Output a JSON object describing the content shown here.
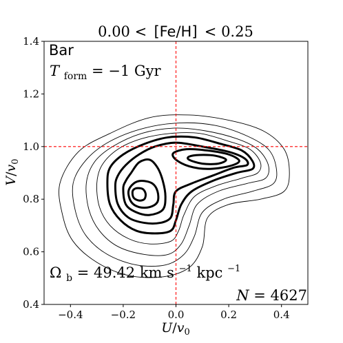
{
  "chart_data": {
    "type": "contour",
    "title": {
      "left": "0.00 <",
      "middle": "[Fe/H]",
      "right": "< 0.25"
    },
    "xlabel": {
      "main": "U",
      "sep": "/",
      "sym": "v",
      "sub": "0"
    },
    "ylabel": {
      "main": "V",
      "sep": "/",
      "sym": "v",
      "sub": "0"
    },
    "xlim": [
      -0.5,
      0.5
    ],
    "ylim": [
      0.4,
      1.4
    ],
    "xticks": [
      -0.4,
      -0.2,
      0.0,
      0.2,
      0.4
    ],
    "xtick_labels": [
      "−0.4",
      "−0.2",
      "0.0",
      "0.2",
      "0.4"
    ],
    "yticks": [
      0.4,
      0.6,
      0.8,
      1.0,
      1.2,
      1.4
    ],
    "ytick_labels": [
      "0.4",
      "0.6",
      "0.8",
      "1.0",
      "1.2",
      "1.4"
    ],
    "reference_lines": {
      "x": 0.0,
      "y": 1.0,
      "color": "#ff0000",
      "style": "dashed"
    },
    "annotations": {
      "model": "Bar",
      "tform_sym": "T",
      "tform_sub": "form",
      "tform_val": " = −1 Gyr",
      "omega_sym": "Ω",
      "omega_sub": "b",
      "omega_val": " = 49.42 km s",
      "omega_exp1": "−1",
      "omega_unit": " kpc",
      "omega_exp2": "−1",
      "n_sym": "N",
      "n_val": " = 4627"
    },
    "contour_style": {
      "color": "#000000",
      "thin_width": 0.9,
      "thick_width": 3.0
    },
    "contour_levels": [
      {
        "level": 1,
        "weight": "thin",
        "points": [
          [
            -0.44,
            0.86
          ],
          [
            -0.43,
            0.74
          ],
          [
            -0.39,
            0.64
          ],
          [
            -0.3,
            0.56
          ],
          [
            -0.18,
            0.51
          ],
          [
            -0.05,
            0.505
          ],
          [
            0.05,
            0.54
          ],
          [
            0.1,
            0.62
          ],
          [
            0.12,
            0.73
          ],
          [
            0.2,
            0.78
          ],
          [
            0.32,
            0.8
          ],
          [
            0.41,
            0.83
          ],
          [
            0.43,
            0.9
          ],
          [
            0.41,
            0.99
          ],
          [
            0.33,
            1.06
          ],
          [
            0.2,
            1.1
          ],
          [
            0.05,
            1.12
          ],
          [
            -0.1,
            1.11
          ],
          [
            -0.25,
            1.05
          ],
          [
            -0.37,
            0.98
          ]
        ]
      },
      {
        "level": 2,
        "weight": "thin",
        "points": [
          [
            -0.39,
            0.86
          ],
          [
            -0.38,
            0.75
          ],
          [
            -0.34,
            0.66
          ],
          [
            -0.26,
            0.59
          ],
          [
            -0.15,
            0.55
          ],
          [
            -0.04,
            0.55
          ],
          [
            0.03,
            0.59
          ],
          [
            0.07,
            0.66
          ],
          [
            0.1,
            0.75
          ],
          [
            0.18,
            0.8
          ],
          [
            0.29,
            0.83
          ],
          [
            0.37,
            0.86
          ],
          [
            0.38,
            0.92
          ],
          [
            0.35,
            0.99
          ],
          [
            0.27,
            1.04
          ],
          [
            0.15,
            1.08
          ],
          [
            0.02,
            1.09
          ],
          [
            -0.12,
            1.07
          ],
          [
            -0.25,
            1.02
          ],
          [
            -0.34,
            0.95
          ]
        ]
      },
      {
        "level": 3,
        "weight": "thin",
        "points": [
          [
            -0.34,
            0.86
          ],
          [
            -0.33,
            0.76
          ],
          [
            -0.29,
            0.68
          ],
          [
            -0.22,
            0.62
          ],
          [
            -0.12,
            0.59
          ],
          [
            -0.03,
            0.59
          ],
          [
            0.02,
            0.63
          ],
          [
            0.05,
            0.7
          ],
          [
            0.08,
            0.78
          ],
          [
            0.16,
            0.83
          ],
          [
            0.27,
            0.86
          ],
          [
            0.34,
            0.88
          ],
          [
            0.35,
            0.93
          ],
          [
            0.31,
            0.99
          ],
          [
            0.23,
            1.03
          ],
          [
            0.11,
            1.06
          ],
          [
            -0.01,
            1.07
          ],
          [
            -0.13,
            1.05
          ],
          [
            -0.24,
            1.0
          ],
          [
            -0.31,
            0.94
          ]
        ]
      },
      {
        "level": 4,
        "weight": "thin",
        "points": [
          [
            -0.3,
            0.86
          ],
          [
            -0.29,
            0.77
          ],
          [
            -0.25,
            0.7
          ],
          [
            -0.18,
            0.65
          ],
          [
            -0.1,
            0.63
          ],
          [
            -0.02,
            0.64
          ],
          [
            0.01,
            0.68
          ],
          [
            0.03,
            0.74
          ],
          [
            0.07,
            0.81
          ],
          [
            0.15,
            0.85
          ],
          [
            0.25,
            0.88
          ],
          [
            0.31,
            0.9
          ],
          [
            0.32,
            0.94
          ],
          [
            0.28,
            0.99
          ],
          [
            0.2,
            1.02
          ],
          [
            0.09,
            1.05
          ],
          [
            -0.02,
            1.05
          ],
          [
            -0.13,
            1.03
          ],
          [
            -0.22,
            0.99
          ],
          [
            -0.28,
            0.93
          ]
        ]
      },
      {
        "level": 5,
        "weight": "thick",
        "points": [
          [
            -0.26,
            0.86
          ],
          [
            -0.25,
            0.78
          ],
          [
            -0.21,
            0.72
          ],
          [
            -0.15,
            0.68
          ],
          [
            -0.08,
            0.67
          ],
          [
            -0.02,
            0.68
          ],
          [
            0.0,
            0.72
          ],
          [
            0.02,
            0.78
          ],
          [
            0.06,
            0.83
          ],
          [
            0.14,
            0.87
          ],
          [
            0.23,
            0.9
          ],
          [
            0.29,
            0.915
          ],
          [
            0.29,
            0.945
          ],
          [
            0.25,
            0.985
          ],
          [
            0.17,
            1.01
          ],
          [
            0.07,
            1.035
          ],
          [
            -0.03,
            1.035
          ],
          [
            -0.12,
            1.01
          ],
          [
            -0.2,
            0.97
          ],
          [
            -0.25,
            0.92
          ]
        ]
      },
      {
        "level": 6,
        "weight": "thick",
        "points": [
          [
            -0.23,
            0.85
          ],
          [
            -0.22,
            0.78
          ],
          [
            -0.18,
            0.73
          ],
          [
            -0.12,
            0.71
          ],
          [
            -0.06,
            0.71
          ],
          [
            -0.02,
            0.73
          ],
          [
            -0.01,
            0.78
          ],
          [
            0.0,
            0.83
          ],
          [
            0.06,
            0.86
          ],
          [
            0.14,
            0.89
          ],
          [
            0.22,
            0.92
          ],
          [
            0.27,
            0.93
          ],
          [
            0.26,
            0.955
          ],
          [
            0.2,
            0.98
          ],
          [
            0.1,
            1.0
          ],
          [
            0.0,
            1.015
          ],
          [
            -0.08,
            1.0
          ],
          [
            -0.14,
            0.97
          ],
          [
            -0.19,
            0.93
          ],
          [
            -0.22,
            0.89
          ]
        ]
      },
      {
        "level": 7,
        "weight": "thick",
        "points": [
          [
            -0.2,
            0.84
          ],
          [
            -0.19,
            0.78
          ],
          [
            -0.15,
            0.75
          ],
          [
            -0.1,
            0.74
          ],
          [
            -0.05,
            0.76
          ],
          [
            -0.04,
            0.81
          ],
          [
            -0.05,
            0.87
          ],
          [
            -0.07,
            0.92
          ],
          [
            -0.1,
            0.95
          ],
          [
            -0.14,
            0.94
          ],
          [
            -0.17,
            0.9
          ],
          [
            -0.19,
            0.87
          ]
        ]
      },
      {
        "level": 7,
        "weight": "thick",
        "points": [
          [
            0.0,
            0.95
          ],
          [
            0.05,
            0.925
          ],
          [
            0.12,
            0.915
          ],
          [
            0.2,
            0.925
          ],
          [
            0.24,
            0.945
          ],
          [
            0.2,
            0.97
          ],
          [
            0.12,
            0.985
          ],
          [
            0.04,
            0.99
          ],
          [
            -0.01,
            0.975
          ]
        ]
      },
      {
        "level": 8,
        "weight": "thick",
        "points": [
          [
            -0.18,
            0.83
          ],
          [
            -0.17,
            0.79
          ],
          [
            -0.14,
            0.77
          ],
          [
            -0.1,
            0.77
          ],
          [
            -0.07,
            0.79
          ],
          [
            -0.07,
            0.83
          ],
          [
            -0.09,
            0.86
          ],
          [
            -0.13,
            0.87
          ],
          [
            -0.16,
            0.86
          ]
        ]
      },
      {
        "level": 8,
        "weight": "thick",
        "points": [
          [
            0.05,
            0.95
          ],
          [
            0.1,
            0.935
          ],
          [
            0.16,
            0.935
          ],
          [
            0.19,
            0.95
          ],
          [
            0.15,
            0.965
          ],
          [
            0.09,
            0.968
          ],
          [
            0.05,
            0.962
          ]
        ]
      },
      {
        "level": 9,
        "weight": "thick",
        "points": [
          [
            -0.165,
            0.825
          ],
          [
            -0.16,
            0.805
          ],
          [
            -0.14,
            0.795
          ],
          [
            -0.12,
            0.8
          ],
          [
            -0.115,
            0.82
          ],
          [
            -0.125,
            0.838
          ],
          [
            -0.145,
            0.842
          ],
          [
            -0.16,
            0.837
          ]
        ]
      }
    ]
  }
}
